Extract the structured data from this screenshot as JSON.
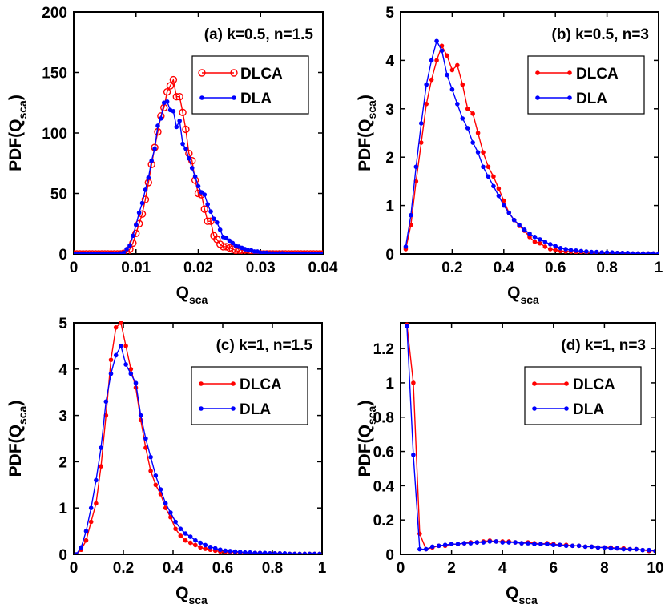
{
  "colors": {
    "dlca": "#ff0000",
    "dla": "#0000ff",
    "axis": "#000000"
  },
  "chart_data": [
    {
      "type": "line",
      "title": "(a) k=0.5, n=1.5",
      "xlabel": "Q",
      "xlabel_sub": "sca",
      "ylabel": "PDF(Q",
      "ylabel_sub": "sca",
      "ylabel_end": ")",
      "xlim": [
        0,
        0.04
      ],
      "ylim": [
        0,
        200
      ],
      "xticks": [
        0,
        0.01,
        0.02,
        0.03,
        0.04
      ],
      "xtick_labels": [
        "0",
        "0.01",
        "0.02",
        "0.03",
        "0.04"
      ],
      "yticks": [
        0,
        50,
        100,
        150,
        200
      ],
      "ytick_labels": [
        "0",
        "50",
        "100",
        "150",
        "200"
      ],
      "legend": "upper-right",
      "series": [
        {
          "name": "DLCA",
          "marker": "open-circle",
          "x": [
            0,
            0.0005,
            0.001,
            0.0015,
            0.002,
            0.0025,
            0.003,
            0.0035,
            0.004,
            0.0045,
            0.005,
            0.0055,
            0.006,
            0.0065,
            0.007,
            0.0075,
            0.008,
            0.0085,
            0.009,
            0.0095,
            0.01,
            0.0105,
            0.011,
            0.0115,
            0.012,
            0.0125,
            0.013,
            0.0135,
            0.014,
            0.0145,
            0.015,
            0.0155,
            0.016,
            0.0165,
            0.017,
            0.0175,
            0.018,
            0.0185,
            0.019,
            0.0195,
            0.02,
            0.0205,
            0.021,
            0.0215,
            0.022,
            0.0225,
            0.023,
            0.0235,
            0.024,
            0.0245,
            0.025,
            0.0255,
            0.026,
            0.0265,
            0.027,
            0.0275,
            0.028,
            0.0285,
            0.029,
            0.0295,
            0.03,
            0.0305,
            0.031,
            0.0315,
            0.032,
            0.0325,
            0.033,
            0.0335,
            0.034,
            0.0345,
            0.035,
            0.0355,
            0.036,
            0.0365,
            0.037,
            0.0375,
            0.038,
            0.0385,
            0.039,
            0.0395,
            0.04
          ],
          "y": [
            0,
            0,
            0,
            0,
            0,
            0,
            0,
            0,
            0,
            0,
            0,
            0,
            0,
            0,
            0,
            0,
            0.5,
            1,
            4,
            9,
            17,
            25,
            33,
            45,
            59,
            74,
            88,
            101,
            114,
            121,
            134,
            139,
            144,
            130,
            130,
            117,
            103,
            83,
            77,
            61,
            50,
            49,
            37,
            27,
            27,
            15,
            12,
            8,
            6,
            6,
            5,
            4,
            3,
            2,
            1,
            1,
            1,
            0,
            0,
            0,
            0,
            0,
            0,
            0,
            0,
            0,
            0,
            0,
            0,
            0,
            0,
            0,
            0,
            0,
            0,
            0,
            0,
            0,
            0,
            0,
            0
          ]
        },
        {
          "name": "DLA",
          "marker": "filled-dot",
          "x": [
            0,
            0.0005,
            0.001,
            0.0015,
            0.002,
            0.0025,
            0.003,
            0.0035,
            0.004,
            0.0045,
            0.005,
            0.0055,
            0.006,
            0.0065,
            0.007,
            0.0075,
            0.008,
            0.0085,
            0.009,
            0.0095,
            0.01,
            0.0105,
            0.011,
            0.0115,
            0.012,
            0.0125,
            0.013,
            0.0135,
            0.014,
            0.0145,
            0.015,
            0.0155,
            0.016,
            0.0165,
            0.017,
            0.0175,
            0.018,
            0.0185,
            0.019,
            0.0195,
            0.02,
            0.0205,
            0.021,
            0.0215,
            0.022,
            0.0225,
            0.023,
            0.0235,
            0.024,
            0.0245,
            0.025,
            0.0255,
            0.026,
            0.0265,
            0.027,
            0.0275,
            0.028,
            0.0285,
            0.029,
            0.0295,
            0.03,
            0.0305,
            0.031,
            0.0315,
            0.032,
            0.0325,
            0.033,
            0.0335,
            0.034,
            0.0345,
            0.035,
            0.0355,
            0.036,
            0.0365,
            0.037,
            0.0375,
            0.038,
            0.0385,
            0.039,
            0.0395,
            0.04
          ],
          "y": [
            0,
            0,
            0,
            0,
            0,
            0,
            0,
            0,
            0,
            0,
            0,
            0,
            0,
            0,
            0,
            0.5,
            1,
            4,
            7,
            15,
            24,
            34,
            42,
            53,
            63,
            77,
            87,
            106,
            112,
            125,
            126,
            119,
            118,
            105,
            110,
            91,
            87,
            79,
            71,
            64,
            56,
            51,
            49,
            41,
            35,
            29,
            26,
            20,
            14,
            13,
            11,
            9,
            7,
            6,
            5,
            4,
            3,
            3,
            2,
            2,
            1,
            1,
            1,
            0.5,
            0.5,
            0.5,
            0.5,
            0.5,
            0,
            0,
            0,
            0,
            0,
            0,
            0,
            0,
            0,
            0,
            0,
            0,
            0
          ]
        }
      ]
    },
    {
      "type": "line",
      "title": "(b) k=0.5, n=3",
      "xlabel": "Q",
      "xlabel_sub": "sca",
      "ylabel": "PDF(Q",
      "ylabel_sub": "sca",
      "ylabel_end": ")",
      "xlim": [
        0,
        1
      ],
      "ylim": [
        0,
        5
      ],
      "xticks": [
        0.2,
        0.4,
        0.6,
        0.8,
        1
      ],
      "xtick_labels": [
        "0.2",
        "0.4",
        "0.6",
        "0.8",
        "1"
      ],
      "yticks": [
        0,
        1,
        2,
        3,
        4,
        5
      ],
      "ytick_labels": [
        "0",
        "1",
        "2",
        "3",
        "4",
        "5"
      ],
      "legend": "upper-right",
      "series": [
        {
          "name": "DLCA",
          "marker": "filled-dot",
          "x": [
            0.02,
            0.04,
            0.06,
            0.08,
            0.1,
            0.12,
            0.14,
            0.16,
            0.18,
            0.2,
            0.22,
            0.24,
            0.26,
            0.28,
            0.3,
            0.32,
            0.34,
            0.36,
            0.38,
            0.4,
            0.42,
            0.44,
            0.46,
            0.48,
            0.5,
            0.52,
            0.54,
            0.56,
            0.58,
            0.6,
            0.62,
            0.64,
            0.66,
            0.68,
            0.7,
            0.72,
            0.74,
            0.76,
            0.78,
            0.8,
            0.82,
            0.84,
            0.86,
            0.88,
            0.9,
            0.92,
            0.94,
            0.96,
            0.98,
            1.0
          ],
          "y": [
            0.1,
            0.6,
            1.5,
            2.3,
            3.1,
            3.6,
            4.0,
            4.3,
            4.1,
            3.8,
            3.9,
            3.5,
            3.0,
            2.9,
            2.5,
            2.1,
            1.8,
            1.6,
            1.35,
            1.1,
            0.85,
            0.7,
            0.58,
            0.48,
            0.35,
            0.25,
            0.22,
            0.15,
            0.1,
            0.08,
            0.06,
            0.05,
            0.05,
            0.04,
            0.04,
            0.03,
            0.03,
            0.03,
            0.03,
            0.02,
            0.02,
            0.02,
            0.02,
            0.01,
            0.01,
            0.01,
            0.01,
            0.01,
            0.01,
            0.01
          ]
        },
        {
          "name": "DLA",
          "marker": "filled-dot",
          "x": [
            0.02,
            0.04,
            0.06,
            0.08,
            0.1,
            0.12,
            0.14,
            0.16,
            0.18,
            0.2,
            0.22,
            0.24,
            0.26,
            0.28,
            0.3,
            0.32,
            0.34,
            0.36,
            0.38,
            0.4,
            0.42,
            0.44,
            0.46,
            0.48,
            0.5,
            0.52,
            0.54,
            0.56,
            0.58,
            0.6,
            0.62,
            0.64,
            0.66,
            0.68,
            0.7,
            0.72,
            0.74,
            0.76,
            0.78,
            0.8,
            0.82,
            0.84,
            0.86,
            0.88,
            0.9,
            0.92,
            0.94,
            0.96,
            0.98,
            1.0
          ],
          "y": [
            0.15,
            0.8,
            1.8,
            2.7,
            3.5,
            4.0,
            4.4,
            4.2,
            3.7,
            3.4,
            3.1,
            2.8,
            2.6,
            2.3,
            2.1,
            1.8,
            1.6,
            1.4,
            1.2,
            1.0,
            0.85,
            0.7,
            0.6,
            0.5,
            0.42,
            0.35,
            0.3,
            0.25,
            0.2,
            0.16,
            0.12,
            0.1,
            0.08,
            0.07,
            0.06,
            0.05,
            0.04,
            0.04,
            0.03,
            0.03,
            0.03,
            0.02,
            0.02,
            0.02,
            0.01,
            0.01,
            0.01,
            0.01,
            0.01,
            0.01
          ]
        }
      ]
    },
    {
      "type": "line",
      "title": "(c) k=1, n=1.5",
      "xlabel": "Q",
      "xlabel_sub": "sca",
      "ylabel": "PDF(Q",
      "ylabel_sub": "sca",
      "ylabel_end": ")",
      "xlim": [
        0,
        1
      ],
      "ylim": [
        0,
        5
      ],
      "xticks": [
        0,
        0.2,
        0.4,
        0.6,
        0.8,
        1
      ],
      "xtick_labels": [
        "0",
        "0.2",
        "0.4",
        "0.6",
        "0.8",
        "1"
      ],
      "yticks": [
        0,
        1,
        2,
        3,
        4,
        5
      ],
      "ytick_labels": [
        "0",
        "1",
        "2",
        "3",
        "4",
        "5"
      ],
      "legend": "upper-right",
      "series": [
        {
          "name": "DLCA",
          "marker": "filled-dot",
          "x": [
            0.01,
            0.03,
            0.05,
            0.07,
            0.09,
            0.11,
            0.13,
            0.15,
            0.17,
            0.19,
            0.21,
            0.23,
            0.25,
            0.27,
            0.29,
            0.31,
            0.33,
            0.35,
            0.37,
            0.39,
            0.41,
            0.43,
            0.45,
            0.47,
            0.49,
            0.51,
            0.53,
            0.55,
            0.57,
            0.59,
            0.61,
            0.63,
            0.65,
            0.67,
            0.69,
            0.71,
            0.73,
            0.75,
            0.77,
            0.79,
            0.81,
            0.83,
            0.85,
            0.87,
            0.89,
            0.91,
            0.93,
            0.95,
            0.97,
            0.99
          ],
          "y": [
            0,
            0.1,
            0.3,
            0.7,
            1.1,
            1.9,
            3.0,
            4.2,
            4.9,
            5.0,
            4.5,
            4.0,
            3.6,
            2.9,
            2.3,
            1.8,
            1.5,
            1.3,
            1.0,
            0.8,
            0.55,
            0.4,
            0.3,
            0.25,
            0.2,
            0.15,
            0.12,
            0.1,
            0.08,
            0.06,
            0.05,
            0.05,
            0.04,
            0.04,
            0.03,
            0.03,
            0.03,
            0.03,
            0.02,
            0.02,
            0.02,
            0.02,
            0.01,
            0.01,
            0.01,
            0.01,
            0.01,
            0.01,
            0.01,
            0.01
          ]
        },
        {
          "name": "DLA",
          "marker": "filled-dot",
          "x": [
            0.01,
            0.03,
            0.05,
            0.07,
            0.09,
            0.11,
            0.13,
            0.15,
            0.17,
            0.19,
            0.21,
            0.23,
            0.25,
            0.27,
            0.29,
            0.31,
            0.33,
            0.35,
            0.37,
            0.39,
            0.41,
            0.43,
            0.45,
            0.47,
            0.49,
            0.51,
            0.53,
            0.55,
            0.57,
            0.59,
            0.61,
            0.63,
            0.65,
            0.67,
            0.69,
            0.71,
            0.73,
            0.75,
            0.77,
            0.79,
            0.81,
            0.83,
            0.85,
            0.87,
            0.89,
            0.91,
            0.93,
            0.95,
            0.97,
            0.99
          ],
          "y": [
            0,
            0.15,
            0.5,
            1.0,
            1.6,
            2.3,
            3.3,
            3.9,
            4.3,
            4.5,
            4.1,
            3.9,
            3.7,
            3.0,
            2.5,
            2.1,
            1.7,
            1.4,
            1.1,
            0.9,
            0.7,
            0.55,
            0.45,
            0.38,
            0.3,
            0.25,
            0.2,
            0.16,
            0.13,
            0.1,
            0.08,
            0.07,
            0.06,
            0.05,
            0.04,
            0.04,
            0.03,
            0.03,
            0.03,
            0.02,
            0.02,
            0.02,
            0.02,
            0.01,
            0.01,
            0.01,
            0.01,
            0.01,
            0.01,
            0.01
          ]
        }
      ]
    },
    {
      "type": "line",
      "title": "(d) k=1, n=3",
      "xlabel": "Q",
      "xlabel_sub": "sca",
      "ylabel": "PDF(Q",
      "ylabel_sub": "sca",
      "ylabel_end": ")",
      "xlim": [
        0,
        10
      ],
      "ylim": [
        0,
        1.35
      ],
      "xticks": [
        0,
        2,
        4,
        6,
        8,
        10
      ],
      "xtick_labels": [
        "0",
        "2",
        "4",
        "6",
        "8",
        "10"
      ],
      "yticks": [
        0,
        0.2,
        0.4,
        0.6,
        0.8,
        1,
        1.2
      ],
      "ytick_labels": [
        "0",
        "0.2",
        "0.4",
        "0.6",
        "0.8",
        "1",
        "1.2"
      ],
      "legend": "upper-right",
      "series": [
        {
          "name": "DLCA",
          "marker": "filled-dot",
          "x": [
            0.25,
            0.5,
            0.75,
            1.0,
            1.25,
            1.5,
            1.75,
            2.0,
            2.25,
            2.5,
            2.75,
            3.0,
            3.25,
            3.5,
            3.75,
            4.0,
            4.25,
            4.5,
            4.75,
            5.0,
            5.25,
            5.5,
            5.75,
            6.0,
            6.25,
            6.5,
            6.75,
            7.0,
            7.25,
            7.5,
            7.75,
            8.0,
            8.25,
            8.5,
            8.75,
            9.0,
            9.25,
            9.5,
            9.75,
            10.0
          ],
          "y": [
            1.34,
            1.0,
            0.12,
            0.03,
            0.04,
            0.05,
            0.05,
            0.06,
            0.06,
            0.065,
            0.07,
            0.07,
            0.075,
            0.08,
            0.075,
            0.075,
            0.075,
            0.07,
            0.065,
            0.07,
            0.065,
            0.06,
            0.065,
            0.06,
            0.055,
            0.055,
            0.05,
            0.05,
            0.045,
            0.045,
            0.04,
            0.04,
            0.04,
            0.035,
            0.035,
            0.03,
            0.03,
            0.025,
            0.02,
            0.02
          ]
        },
        {
          "name": "DLA",
          "marker": "filled-dot",
          "x": [
            0.25,
            0.5,
            0.75,
            1.0,
            1.25,
            1.5,
            1.75,
            2.0,
            2.25,
            2.5,
            2.75,
            3.0,
            3.25,
            3.5,
            3.75,
            4.0,
            4.25,
            4.5,
            4.75,
            5.0,
            5.25,
            5.5,
            5.75,
            6.0,
            6.25,
            6.5,
            6.75,
            7.0,
            7.25,
            7.5,
            7.75,
            8.0,
            8.25,
            8.5,
            8.75,
            9.0,
            9.25,
            9.5,
            9.75,
            10.0
          ],
          "y": [
            1.33,
            0.58,
            0.03,
            0.03,
            0.045,
            0.05,
            0.055,
            0.06,
            0.06,
            0.065,
            0.065,
            0.07,
            0.07,
            0.075,
            0.075,
            0.07,
            0.07,
            0.07,
            0.065,
            0.065,
            0.06,
            0.06,
            0.06,
            0.055,
            0.055,
            0.05,
            0.05,
            0.05,
            0.045,
            0.045,
            0.04,
            0.04,
            0.035,
            0.035,
            0.03,
            0.03,
            0.03,
            0.025,
            0.025,
            0.02
          ]
        }
      ]
    }
  ]
}
